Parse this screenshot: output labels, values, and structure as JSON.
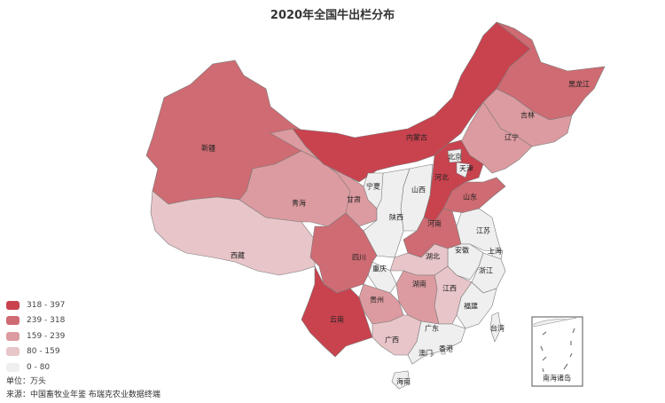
{
  "title": "2020年全国牛出栏分布",
  "legend": [
    {
      "label": "318 - 397",
      "color": "#c8434e"
    },
    {
      "label": "239 - 318",
      "color": "#cf6b72"
    },
    {
      "label": "159 - 239",
      "color": "#dc9ba0"
    },
    {
      "label": "80 - 159",
      "color": "#e8c5c8"
    },
    {
      "label": "0 - 80",
      "color": "#efefef"
    }
  ],
  "unit": "单位：万头",
  "source": "来源：中国畜牧业年鉴  布瑞克农业数据终端",
  "inset_label": "南海诸岛",
  "provinces": [
    {
      "name": "新疆",
      "range": "239 - 318"
    },
    {
      "name": "西藏",
      "range": "80 - 159"
    },
    {
      "name": "甘肃",
      "range": "159 - 239"
    },
    {
      "name": "青海",
      "range": "159 - 239"
    },
    {
      "name": "内蒙古",
      "range": "318 - 397"
    },
    {
      "name": "黑龙江",
      "range": "239 - 318"
    },
    {
      "name": "吉林",
      "range": "159 - 239"
    },
    {
      "name": "辽宁",
      "range": "159 - 239"
    },
    {
      "name": "河北",
      "range": "318 - 397"
    },
    {
      "name": "北京",
      "range": "0 - 80"
    },
    {
      "name": "天津",
      "range": "0 - 80"
    },
    {
      "name": "山西",
      "range": "0 - 80"
    },
    {
      "name": "陕西",
      "range": "0 - 80"
    },
    {
      "name": "宁夏",
      "range": "0 - 80"
    },
    {
      "name": "山东",
      "range": "239 - 318"
    },
    {
      "name": "河南",
      "range": "239 - 318"
    },
    {
      "name": "江苏",
      "range": "0 - 80"
    },
    {
      "name": "上海",
      "range": "0 - 80"
    },
    {
      "name": "安徽",
      "range": "0 - 80"
    },
    {
      "name": "浙江",
      "range": "0 - 80"
    },
    {
      "name": "福建",
      "range": "0 - 80"
    },
    {
      "name": "江西",
      "range": "80 - 159"
    },
    {
      "name": "湖北",
      "range": "80 - 159"
    },
    {
      "name": "湖南",
      "range": "159 - 239"
    },
    {
      "name": "重庆",
      "range": "0 - 80"
    },
    {
      "name": "四川",
      "range": "239 - 318"
    },
    {
      "name": "贵州",
      "range": "159 - 239"
    },
    {
      "name": "云南",
      "range": "318 - 397"
    },
    {
      "name": "广西",
      "range": "80 - 159"
    },
    {
      "name": "广东",
      "range": "0 - 80"
    },
    {
      "name": "海南",
      "range": "0 - 80"
    },
    {
      "name": "台湾",
      "range": "0 - 80"
    },
    {
      "name": "香港",
      "range": "0 - 80"
    },
    {
      "name": "澳门",
      "range": "0 - 80"
    }
  ]
}
